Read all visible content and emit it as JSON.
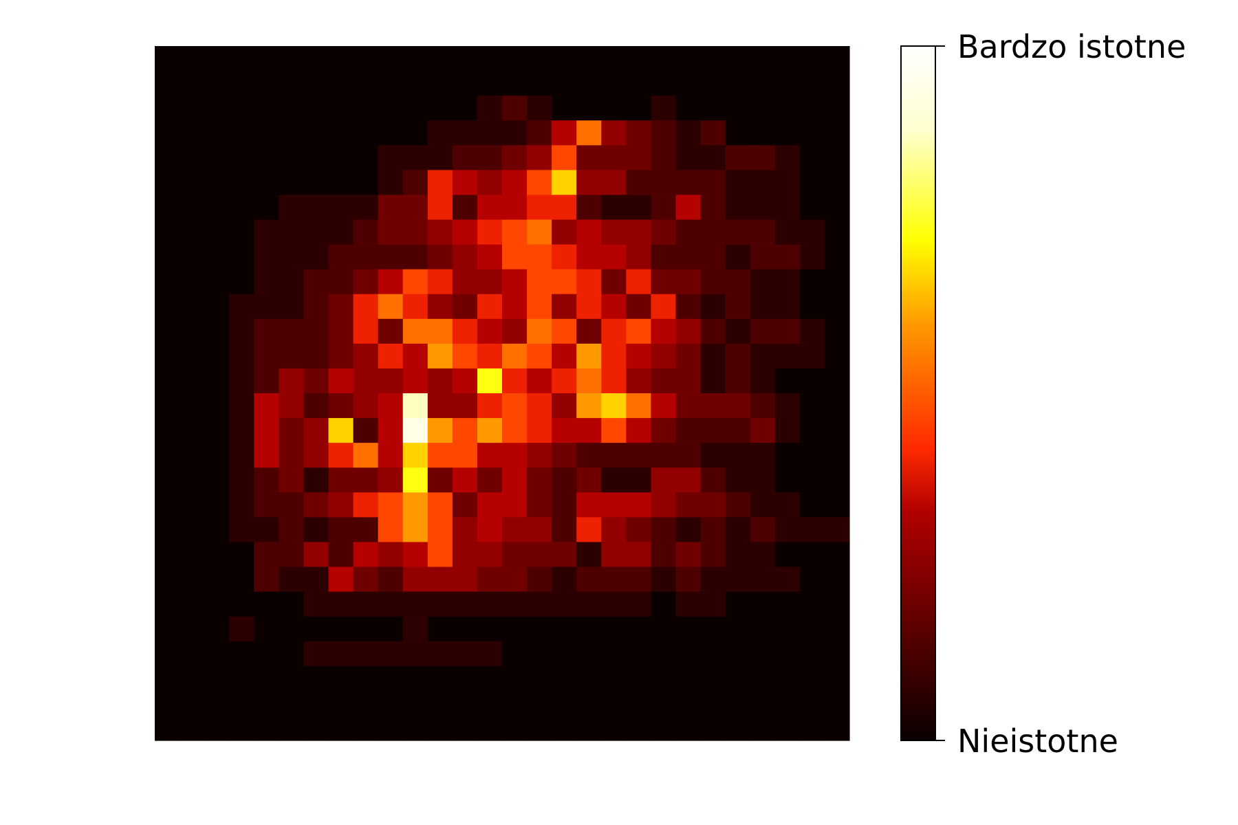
{
  "chart_data": {
    "type": "heatmap",
    "title": "",
    "xlabel": "",
    "ylabel": "",
    "axes_visible": false,
    "grid": false,
    "colormap": "hot",
    "colormap_stops": [
      "#0a0000",
      "#b20000",
      "#ff2a00",
      "#ff9900",
      "#ffff00",
      "#ffffd0",
      "#ffffff"
    ],
    "value_range": [
      0,
      1
    ],
    "colorbar": {
      "placement": "right",
      "ticks": [
        {
          "value": 1,
          "label": "Bardzo istotne"
        },
        {
          "value": 0,
          "label": "Nieistotne"
        }
      ]
    },
    "grid_size": [
      28,
      28
    ],
    "rows": [
      "0000000000000000000000000000",
      "0000000000000000000000000000",
      "0000000000000121000010000000",
      "0000000000011112584321200000",
      "0000000001112234733321122100",
      "0000000001265457A44222211100",
      "0000011113362556621125211100",
      "0000111123345678454432222110",
      "0000111222234577655422212210",
      "0000112235764457763633221100",
      "0001112368643657465362121100",
      "0001222363886548736754212210",
      "0001222346597687596543121110",
      "0001243544545B656864331210000",
      "0001542345D4467649A8533321000",
      "0001534A25E979765575322231000",
      "0001534685A7755432222211100000",
      "0001231334B35353231144211000",
      "0001223467973553255543321100",
      "0001121227974544264321212111",
      "0000224254574433314423211000",
      "0000211532444332122212111100",
      "0000001111111111111101100000",
      "0001000000100000000000000000",
      "0000001111111100000000000000",
      "0000000000000000000000000000",
      "0000000000000000000000000000",
      "0000000000000000000000000000"
    ],
    "rows_note_scale": "hex digit 0-F mapped to 0-1"
  }
}
